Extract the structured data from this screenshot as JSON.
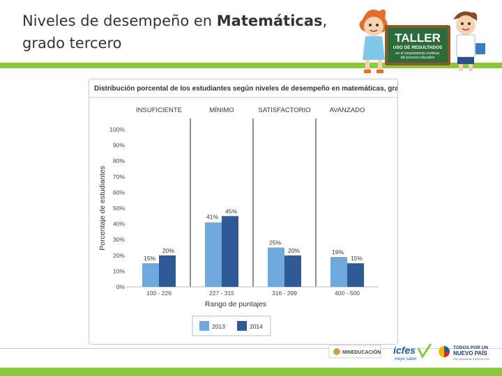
{
  "page": {
    "title_part1": "Niveles de desempeño en ",
    "title_bold": "Matemáticas",
    "title_part2": ",",
    "title_line2": "grado tercero"
  },
  "logo": {
    "word1": "TALLER",
    "word2": "USO DE RESULTADOS",
    "tagline1": "en el mejoramiento continuo",
    "tagline2": "del proceso educativo"
  },
  "footer": {
    "mineducacion": "MINEDUCACIÓN",
    "icfes": "icfes",
    "icfes_sub": "mejor saber",
    "todos1": "TODOS POR UN",
    "todos2": "NUEVO PAÍS",
    "todos3": "PAZ   EQUIDAD   EDUCACIÓN"
  },
  "colors": {
    "s2013": "#6fa8dc",
    "s2014": "#2e5a95",
    "green": "#8dc63f"
  },
  "chart_data": {
    "type": "bar",
    "title": "Distribución porcental de los estudiantes según niveles de desempeño en matemáticas, grado tercero.",
    "levels": [
      "INSUFICIENTE",
      "MÍNIMO",
      "SATISFACTORIO",
      "AVANZADO"
    ],
    "categories": [
      "100 - 226",
      "227 - 315",
      "316 - 399",
      "400 - 500"
    ],
    "series": [
      {
        "name": "2013",
        "values": [
          15,
          41,
          25,
          19
        ]
      },
      {
        "name": "2014",
        "values": [
          20,
          45,
          20,
          15
        ]
      }
    ],
    "yticks": [
      "0%",
      "10%",
      "20%",
      "30%",
      "40%",
      "50%",
      "60%",
      "70%",
      "80%",
      "90%",
      "100%"
    ],
    "ylim": [
      0,
      100
    ],
    "xlabel": "Rango de puntajes",
    "ylabel": "Porcentaje de estudiantes",
    "legend_position": "bottom"
  }
}
